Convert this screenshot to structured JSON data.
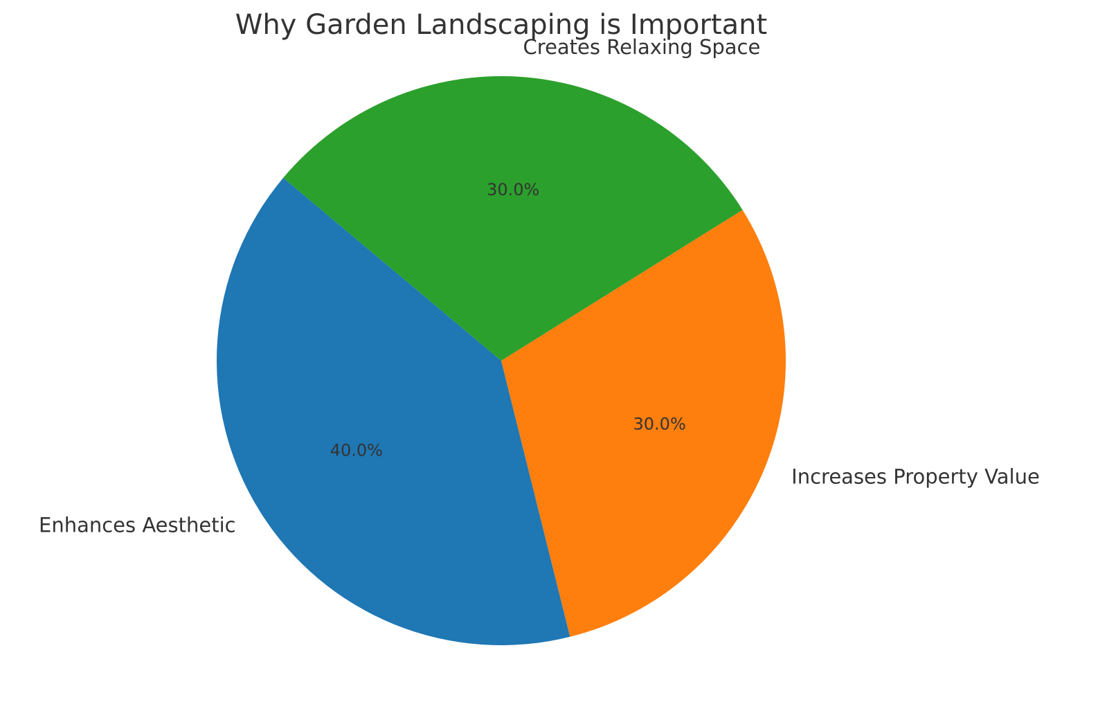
{
  "chart_data": {
    "type": "pie",
    "title": "Why Garden Landscaping is Important",
    "categories": [
      "Enhances Aesthetic",
      "Increases Property Value",
      "Creates Relaxing Space"
    ],
    "values": [
      40,
      30,
      30
    ],
    "value_labels": [
      "40.0%",
      "30.0%",
      "30.0%"
    ],
    "colors": [
      "#1f77b4",
      "#ff7f0e",
      "#2ca02c"
    ]
  }
}
